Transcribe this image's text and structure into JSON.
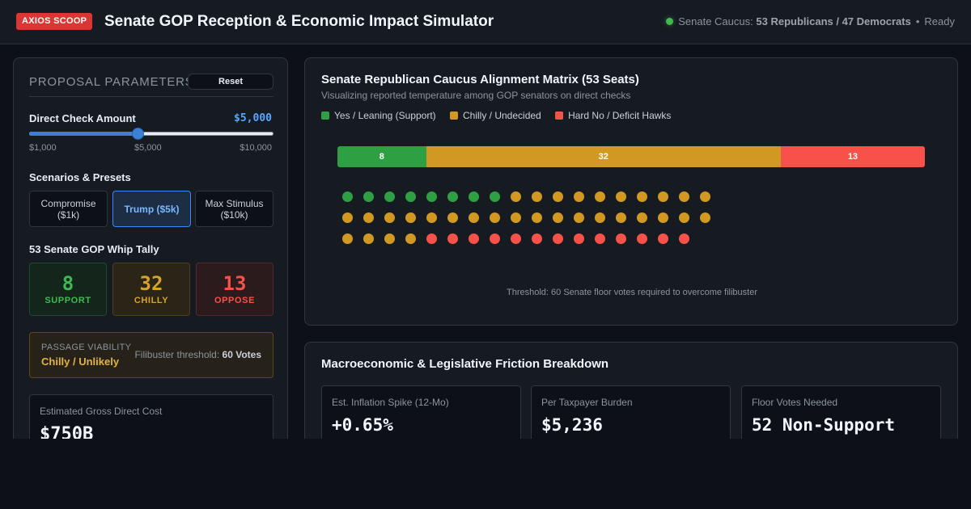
{
  "header": {
    "badge": "AXIOS SCOOP",
    "title": "Senate GOP Reception & Economic Impact Simulator",
    "status_prefix": "Senate Caucus:",
    "status_caucus": "53 Republicans / 47 Democrats",
    "status_separator": "•",
    "status_state": "Ready",
    "status_color": "#3fb950"
  },
  "panel": {
    "title": "PROPOSAL PARAMETERS",
    "reset_label": "Reset",
    "check_label": "Direct Check Amount",
    "check_value": "$5,000",
    "slider": {
      "min": 1000,
      "max": 10000,
      "value": 5000
    },
    "slider_ticks": [
      "$1,000",
      "$5,000",
      "$10,000"
    ],
    "presets_label": "Scenarios & Presets",
    "presets": [
      {
        "line1": "Compromise",
        "line2": "($1k)",
        "active": false
      },
      {
        "line1": "Trump ($5k)",
        "line2": "",
        "active": true
      },
      {
        "line1": "Max Stimulus",
        "line2": "($10k)",
        "active": false
      }
    ],
    "tally_label": "53 Senate GOP Whip Tally",
    "tally": [
      {
        "num": "8",
        "cap": "SUPPORT"
      },
      {
        "num": "32",
        "cap": "CHILLY"
      },
      {
        "num": "13",
        "cap": "OPPOSE"
      }
    ],
    "viability_caption": "PASSAGE VIABILITY",
    "viability_value": "Chilly / Unlikely",
    "filibuster_prefix": "Filibuster threshold:",
    "filibuster_votes": "60 Votes",
    "cost_caption": "Estimated Gross Direct Cost",
    "cost_value": "$750B"
  },
  "matrix": {
    "title": "Senate Republican Caucus Alignment Matrix (53 Seats)",
    "subtitle": "Visualizing reported temperature among GOP senators on direct checks",
    "legend": [
      "Yes / Leaning (Support)",
      "Chilly / Undecided",
      "Hard No / Deficit Hawks"
    ],
    "colors": {
      "support": "#2ea043",
      "chilly": "#d29922",
      "oppose": "#f85149"
    },
    "counts": {
      "support": 8,
      "chilly": 32,
      "oppose": 13
    },
    "threshold_note": "Threshold: 60 Senate floor votes required to overcome filibuster"
  },
  "friction": {
    "title": "Macroeconomic & Legislative Friction Breakdown",
    "metrics": [
      {
        "caption": "Est. Inflation Spike (12-Mo)",
        "value": "+0.65%"
      },
      {
        "caption": "Per Taxpayer Burden",
        "value": "$5,236"
      },
      {
        "caption": "Floor Votes Needed",
        "value": "52 Non-Support"
      }
    ]
  }
}
